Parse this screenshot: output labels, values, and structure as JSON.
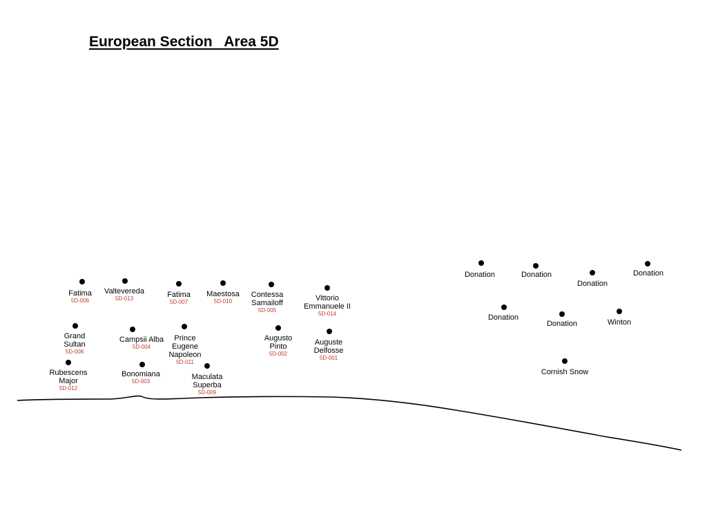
{
  "title": "European Section   Area 5D",
  "colors": {
    "plant_code": "#c0392b",
    "marker": "#000000",
    "ground_line": "#000000"
  },
  "plants": [
    {
      "name": "Fatima",
      "code": "5D-006"
    },
    {
      "name": "Valtevereda",
      "code": "5D-013"
    },
    {
      "name": "Fatima",
      "code": "5D-007"
    },
    {
      "name": "Maestosa",
      "code": "5D-010"
    },
    {
      "name": "Contessa\nSamailoff",
      "code": "5D-005"
    },
    {
      "name": "Vittorio\nEmmanuele II",
      "code": "5D-014"
    },
    {
      "name": "Grand\nSultan",
      "code": "5D-008"
    },
    {
      "name": "Campsii Alba",
      "code": "5D-004"
    },
    {
      "name": "Prince\nEugene\nNapoleon",
      "code": "5D-011"
    },
    {
      "name": "Augusto\nPinto",
      "code": "5D-002"
    },
    {
      "name": "Auguste\nDelfosse",
      "code": "5D-001"
    },
    {
      "name": "Rubescens\nMajor",
      "code": "5D-012"
    },
    {
      "name": "Bonomiana",
      "code": "5D-003"
    },
    {
      "name": "Maculata\nSuperba",
      "code": "5D-009"
    },
    {
      "name": "Donation"
    },
    {
      "name": "Donation"
    },
    {
      "name": "Donation"
    },
    {
      "name": "Donation"
    },
    {
      "name": "Donation"
    },
    {
      "name": "Donation"
    },
    {
      "name": "Winton"
    },
    {
      "name": "Cornish Snow"
    }
  ]
}
